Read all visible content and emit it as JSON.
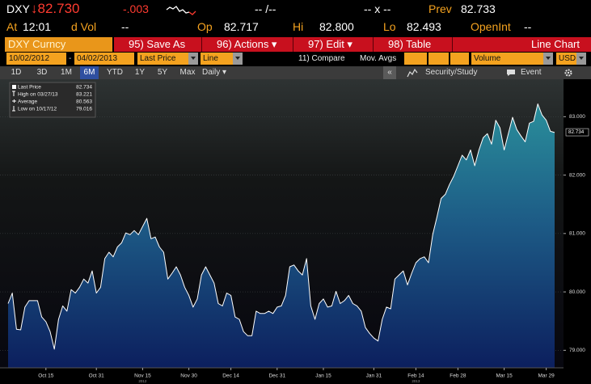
{
  "header": {
    "row1": {
      "ticker": "DXY",
      "price": "↓82.730",
      "change": "-.003",
      "bid": "-- /--",
      "size": "-- x --",
      "prev_label": "Prev",
      "prev": "82.733"
    },
    "row2": {
      "at_label": "At",
      "time": "12:01",
      "vol_label": "d Vol",
      "vol": "--",
      "open_label": "Op",
      "open": "82.717",
      "high_label": "Hi",
      "high": "82.800",
      "low_label": "Lo",
      "low": "82.493",
      "openint_label": "OpenInt",
      "openint": "--"
    },
    "toolbar": {
      "security": "DXY Curncy",
      "buttons": [
        "95) Save As",
        "96) Actions ▾",
        "97) Edit ▾",
        "98) Table"
      ],
      "view": "Line Chart"
    },
    "settings": {
      "start_date": "10/02/2012",
      "dash": "-",
      "end_date": "04/02/2013",
      "field": "Last Price",
      "style": "Line",
      "compare": "11) Compare",
      "mov_avgs": "Mov. Avgs",
      "volume": "Volume",
      "currency": "USD"
    },
    "periods": [
      "1D",
      "3D",
      "1M",
      "6M",
      "YTD",
      "1Y",
      "5Y",
      "Max"
    ],
    "frequency": "Daily ▾",
    "collapse": "«",
    "study": "Security/Study",
    "event": "Event"
  },
  "chart_data": {
    "type": "line",
    "categories": [
      null,
      null,
      null,
      null,
      null,
      null,
      null,
      null,
      null,
      "Oct 15",
      null,
      null,
      null,
      null,
      null,
      null,
      null,
      null,
      null,
      null,
      null,
      "Oct 31",
      null,
      null,
      null,
      null,
      null,
      null,
      null,
      null,
      null,
      null,
      "Nov 15",
      null,
      null,
      null,
      null,
      null,
      null,
      null,
      null,
      null,
      null,
      "Nov 30",
      null,
      null,
      null,
      null,
      null,
      null,
      null,
      null,
      null,
      "Dec 14",
      null,
      null,
      null,
      null,
      null,
      null,
      null,
      null,
      null,
      null,
      "Dec 31",
      null,
      null,
      null,
      null,
      null,
      null,
      null,
      null,
      null,
      null,
      "Jan 15",
      null,
      null,
      null,
      null,
      null,
      null,
      null,
      null,
      null,
      null,
      null,
      "Jan 31",
      null,
      null,
      null,
      null,
      null,
      null,
      null,
      null,
      null,
      "Feb 14",
      null,
      null,
      null,
      null,
      null,
      null,
      null,
      null,
      null,
      "Feb 28",
      null,
      null,
      null,
      null,
      null,
      null,
      null,
      null,
      null,
      null,
      "Mar 15",
      null,
      null,
      null,
      null,
      null,
      null,
      null,
      null,
      null,
      "Mar 29",
      null,
      null
    ],
    "year_labels": [
      "2012",
      "2013"
    ],
    "series": [
      {
        "name": "Last Price",
        "color": "#ffffff",
        "values": [
          79.8,
          79.98,
          79.36,
          79.35,
          79.74,
          79.85,
          79.85,
          79.85,
          79.57,
          79.49,
          79.32,
          79.02,
          79.53,
          79.76,
          79.67,
          80.04,
          79.98,
          80.08,
          80.22,
          80.15,
          80.36,
          79.98,
          80.08,
          80.57,
          80.68,
          80.6,
          80.77,
          80.84,
          81.01,
          80.98,
          81.05,
          80.98,
          81.12,
          81.26,
          80.91,
          80.94,
          80.77,
          80.68,
          80.22,
          80.32,
          80.43,
          80.29,
          80.08,
          79.94,
          79.74,
          79.88,
          80.29,
          80.43,
          80.29,
          80.15,
          79.8,
          79.76,
          79.98,
          79.94,
          79.57,
          79.53,
          79.32,
          79.25,
          79.25,
          79.67,
          79.63,
          79.63,
          79.67,
          79.63,
          79.74,
          79.76,
          79.94,
          80.43,
          80.46,
          80.36,
          80.29,
          80.57,
          79.76,
          79.53,
          79.8,
          79.88,
          79.74,
          79.76,
          80.01,
          79.8,
          79.85,
          79.94,
          79.8,
          79.76,
          79.67,
          79.39,
          79.29,
          79.21,
          79.16,
          79.53,
          79.74,
          79.71,
          80.22,
          80.29,
          80.36,
          80.12,
          80.32,
          80.5,
          80.57,
          80.6,
          80.5,
          80.98,
          81.28,
          81.6,
          81.67,
          81.84,
          81.98,
          82.16,
          82.34,
          82.26,
          82.43,
          82.16,
          82.43,
          82.64,
          82.71,
          82.53,
          82.94,
          82.81,
          82.43,
          82.71,
          82.99,
          82.78,
          82.67,
          82.57,
          82.89,
          82.92,
          83.22,
          83.03,
          82.94,
          82.75,
          82.73
        ]
      }
    ],
    "legend": [
      {
        "name": "Last Price",
        "value": 82.734
      },
      {
        "name": "High on 03/27/13",
        "value": 83.221
      },
      {
        "name": "Average",
        "value": 80.563
      },
      {
        "name": "Low on 10/17/12",
        "value": 79.016
      }
    ],
    "ylim": [
      78.7,
      83.6
    ],
    "yticks": [
      {
        "value": 79,
        "label": "79.000"
      },
      {
        "value": 80,
        "label": "80.000"
      },
      {
        "value": 81,
        "label": "81.000"
      },
      {
        "value": 82,
        "label": "82.000"
      },
      {
        "value": 83,
        "label": "83.000"
      }
    ],
    "grid": true
  }
}
